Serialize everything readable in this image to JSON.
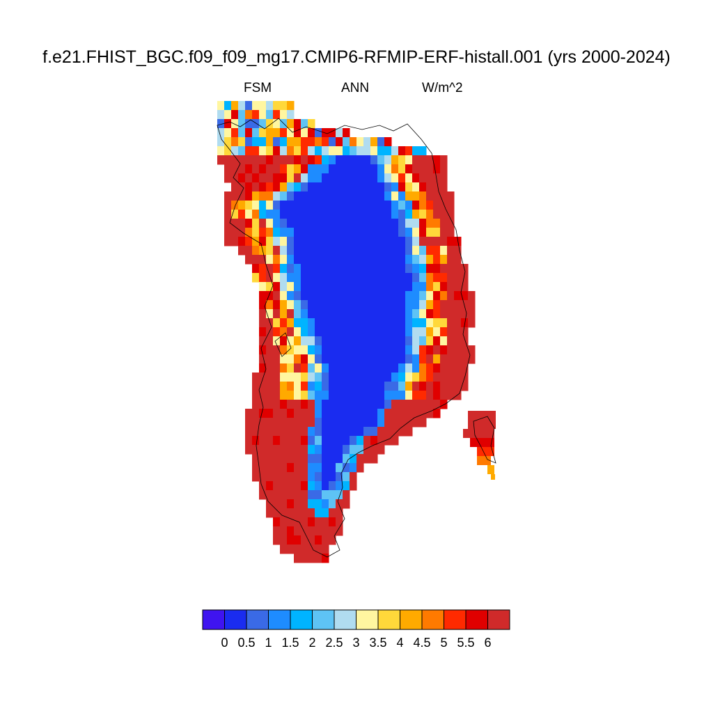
{
  "header": {
    "title": "f.e21.FHIST_BGC.f09_f09_mg17.CMIP6-RFMIP-ERF-histall.001 (yrs 2000-2024)",
    "left": "FSM",
    "center": "ANN",
    "right": "W/m^2"
  },
  "colorbar": {
    "colors": [
      "#3f14f0",
      "#1a2cf0",
      "#3a6ae6",
      "#1e8cff",
      "#00b4ff",
      "#5ec3f5",
      "#b0dcf0",
      "#fff6a0",
      "#ffd83a",
      "#ffaa00",
      "#ff7a00",
      "#ff2a00",
      "#e00000",
      "#d02a2a"
    ],
    "labels": [
      "0",
      "0.5",
      "1",
      "1.5",
      "2",
      "2.5",
      "3",
      "3.5",
      "4",
      "4.5",
      "5",
      "5.5",
      "6"
    ]
  },
  "map": {
    "region": "Greenland",
    "variable": "FSM",
    "season": "ANN",
    "units": "W/m^2",
    "interior_level": "0.5-1",
    "margin_level": ">6"
  }
}
